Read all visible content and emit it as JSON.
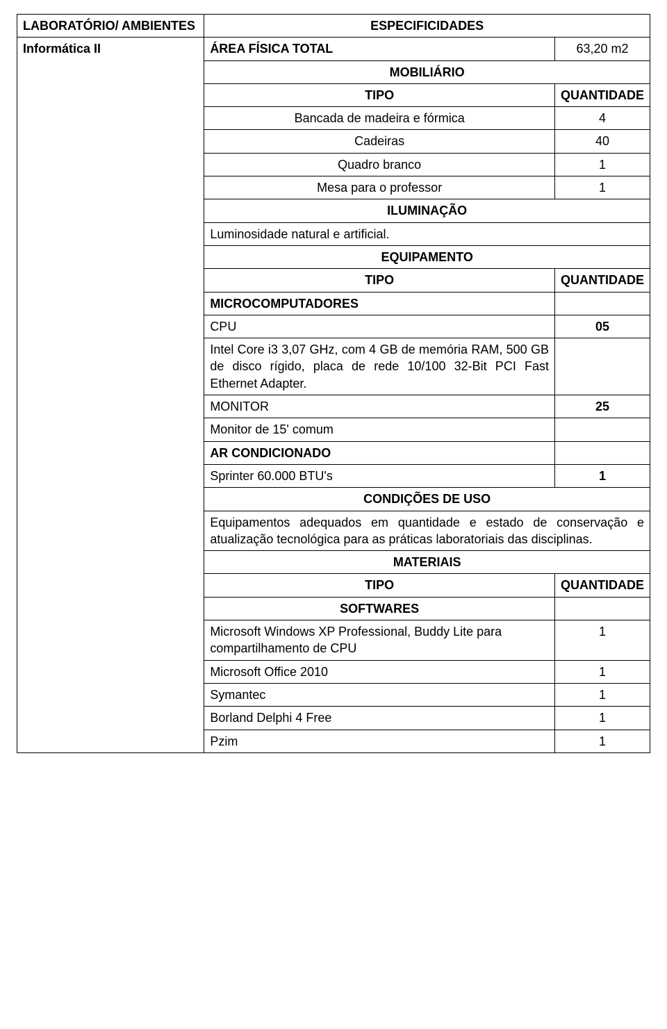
{
  "header": {
    "lab_col_title": "LABORATÓRIO/ AMBIENTES",
    "spec_col_title": "ESPECIFICIDADES",
    "lab_name": "Informática II",
    "area_label": "ÁREA FÍSICA TOTAL",
    "area_value": "63,20 m2"
  },
  "mobiliario": {
    "title": "MOBILIÁRIO",
    "type_h": "TIPO",
    "qty_h": "QUANTIDADE",
    "items": [
      {
        "label": "Bancada de madeira e fórmica",
        "qty": "4"
      },
      {
        "label": "Cadeiras",
        "qty": "40"
      },
      {
        "label": "Quadro branco",
        "qty": "1"
      },
      {
        "label": "Mesa para o professor",
        "qty": "1"
      }
    ]
  },
  "iluminacao": {
    "title": "ILUMINAÇÃO",
    "text": "Luminosidade natural e artificial."
  },
  "equipamento": {
    "title": "EQUIPAMENTO",
    "type_h": "TIPO",
    "qty_h": "QUANTIDADE",
    "micro_h": "MICROCOMPUTADORES",
    "cpu_label": "CPU",
    "cpu_qty": "05",
    "cpu_desc": "Intel Core i3 3,07 GHz, com 4 GB de memória RAM, 500 GB de disco rígido, placa de rede 10/100 32-Bit PCI Fast Ethernet Adapter.",
    "monitor_label": "MONITOR",
    "monitor_qty": "25",
    "monitor_desc": "Monitor de 15' comum",
    "ac_h": "AR CONDICIONADO",
    "ac_label": "Sprinter 60.000 BTU's",
    "ac_qty": "1"
  },
  "condicoes": {
    "title": "CONDIÇÕES DE USO",
    "text": "Equipamentos adequados em quantidade e estado de conservação e atualização tecnológica para as práticas laboratoriais das disciplinas."
  },
  "materiais": {
    "title": "MATERIAIS",
    "type_h": "TIPO",
    "qty_h": "QUANTIDADE",
    "soft_h": "SOFTWARES",
    "items": [
      {
        "label": "Microsoft Windows XP Professional, Buddy Lite para compartilhamento de CPU",
        "qty": "1"
      },
      {
        "label": "Microsoft Office 2010",
        "qty": "1"
      },
      {
        "label": "Symantec",
        "qty": "1"
      },
      {
        "label": "Borland Delphi 4 Free",
        "qty": "1"
      },
      {
        "label": "Pzim",
        "qty": "1"
      }
    ]
  }
}
